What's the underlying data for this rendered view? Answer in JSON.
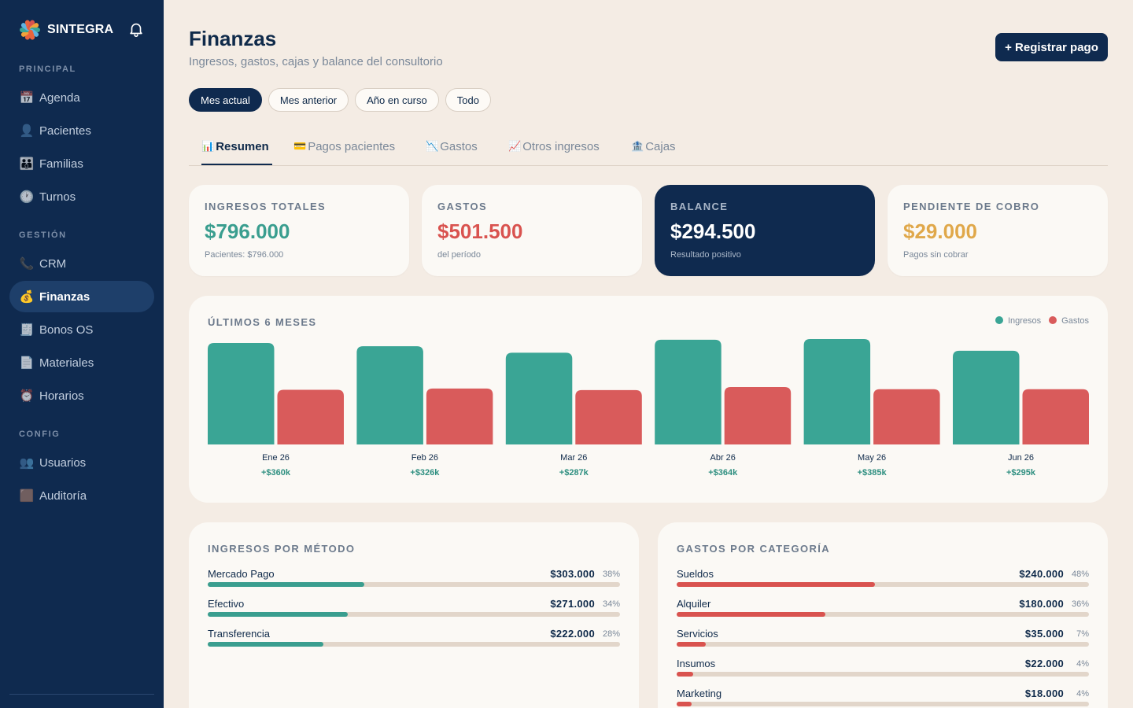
{
  "brand": {
    "name": "SINTEGRA"
  },
  "sidebar": {
    "sections": [
      {
        "label": "PRINCIPAL",
        "items": [
          {
            "label": "Agenda",
            "icon": "calendar-icon",
            "glyph": "📅"
          },
          {
            "label": "Pacientes",
            "icon": "person-icon",
            "glyph": "👤"
          },
          {
            "label": "Familias",
            "icon": "family-icon",
            "glyph": "👪"
          },
          {
            "label": "Turnos",
            "icon": "clock-icon",
            "glyph": "🕐"
          }
        ]
      },
      {
        "label": "GESTIÓN",
        "items": [
          {
            "label": "CRM",
            "icon": "phone-icon",
            "glyph": "📞"
          },
          {
            "label": "Finanzas",
            "icon": "money-bag-icon",
            "glyph": "💰",
            "active": true
          },
          {
            "label": "Bonos OS",
            "icon": "receipt-icon",
            "glyph": "🧾"
          },
          {
            "label": "Materiales",
            "icon": "document-icon",
            "glyph": "📄"
          },
          {
            "label": "Horarios",
            "icon": "alarm-clock-icon",
            "glyph": "⏰"
          }
        ]
      },
      {
        "label": "CONFIG",
        "items": [
          {
            "label": "Usuarios",
            "icon": "users-icon",
            "glyph": "👥"
          },
          {
            "label": "Auditoría",
            "icon": "audit-icon",
            "glyph": "🟫"
          }
        ]
      }
    ]
  },
  "header": {
    "title": "Finanzas",
    "subtitle": "Ingresos, gastos, cajas y balance del consultorio",
    "primary_button": "+ Registrar pago"
  },
  "filters": [
    {
      "label": "Mes actual",
      "active": true
    },
    {
      "label": "Mes anterior"
    },
    {
      "label": "Año en curso"
    },
    {
      "label": "Todo"
    }
  ],
  "tabs": [
    {
      "label": "Resumen",
      "glyph": "📊",
      "icon": "bar-chart-icon",
      "active": true
    },
    {
      "label": "Pagos pacientes",
      "glyph": "💳",
      "icon": "card-icon"
    },
    {
      "label": "Gastos",
      "glyph": "📉",
      "icon": "chart-down-icon"
    },
    {
      "label": "Otros ingresos",
      "glyph": "📈",
      "icon": "chart-up-icon"
    },
    {
      "label": "Cajas",
      "glyph": "🏦",
      "icon": "bank-icon"
    }
  ],
  "stats": [
    {
      "label": "INGRESOS TOTALES",
      "value": "$796.000",
      "note": "Pacientes: $796.000",
      "color": "#3a9e8f"
    },
    {
      "label": "GASTOS",
      "value": "$501.500",
      "note": "del período",
      "color": "#d9534f"
    },
    {
      "label": "BALANCE",
      "value": "$294.500",
      "note": "Resultado positivo",
      "color": "#ffffff",
      "dark": true
    },
    {
      "label": "PENDIENTE DE COBRO",
      "value": "$29.000",
      "note": "Pagos sin cobrar",
      "color": "#e0a84a"
    }
  ],
  "chart": {
    "title": "ÚLTIMOS 6 MESES",
    "legend": {
      "income": "Ingresos",
      "expenses": "Gastos"
    },
    "colors": {
      "income": "#3aa595",
      "expenses": "#d95b5b",
      "net": "#2e8f80"
    }
  },
  "chart_data": {
    "type": "bar",
    "categories": [
      "Ene 26",
      "Feb 26",
      "Mar 26",
      "Abr 26",
      "May 26",
      "Jun 26"
    ],
    "series": [
      {
        "name": "Ingresos",
        "values": [
          780,
          755,
          705,
          805,
          810,
          720
        ]
      },
      {
        "name": "Gastos",
        "values": [
          420,
          430,
          418,
          441,
          425,
          425
        ]
      }
    ],
    "net_labels": [
      "+$360k",
      "+$326k",
      "+$287k",
      "+$364k",
      "+$385k",
      "+$295k"
    ],
    "unit": "k",
    "legend_position": "top-right"
  },
  "income_by_method": {
    "title": "INGRESOS POR MÉTODO",
    "color": "#3a9e8f",
    "rows": [
      {
        "name": "Mercado Pago",
        "amount": "$303.000",
        "pct": "38%",
        "share": 0.38
      },
      {
        "name": "Efectivo",
        "amount": "$271.000",
        "pct": "34%",
        "share": 0.34
      },
      {
        "name": "Transferencia",
        "amount": "$222.000",
        "pct": "28%",
        "share": 0.28
      }
    ]
  },
  "expenses_by_category": {
    "title": "GASTOS POR CATEGORÍA",
    "color": "#d9534f",
    "rows": [
      {
        "name": "Sueldos",
        "amount": "$240.000",
        "pct": "48%",
        "share": 0.48
      },
      {
        "name": "Alquiler",
        "amount": "$180.000",
        "pct": "36%",
        "share": 0.36
      },
      {
        "name": "Servicios",
        "amount": "$35.000",
        "pct": "7%",
        "share": 0.07
      },
      {
        "name": "Insumos",
        "amount": "$22.000",
        "pct": "4%",
        "share": 0.04
      },
      {
        "name": "Marketing",
        "amount": "$18.000",
        "pct": "4%",
        "share": 0.036
      }
    ]
  }
}
